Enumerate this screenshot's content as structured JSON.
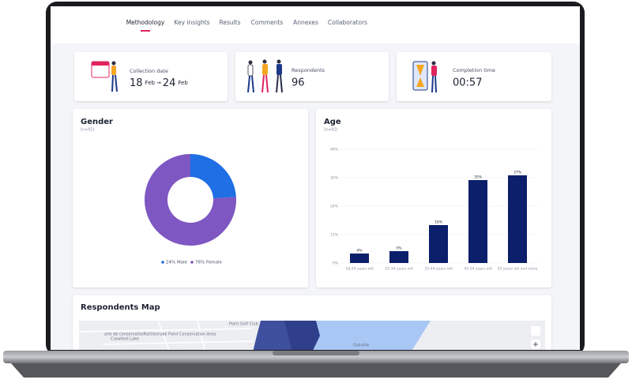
{
  "nav": {
    "items": [
      "Methodology",
      "Key insights",
      "Results",
      "Comments",
      "Annexes",
      "Collaborators"
    ],
    "active": 0
  },
  "cards": [
    {
      "label": "Collection date",
      "start_day": "18",
      "start_month": "Feb",
      "separator": "→",
      "end_day": "24",
      "end_month": "Feb"
    },
    {
      "label": "Respondents",
      "value": 96
    },
    {
      "label": "Completion time",
      "value": "00:57"
    }
  ],
  "gender": {
    "type": "pie",
    "title": "Gender",
    "subtitle": "(n=92)",
    "categories": [
      "Male",
      "Female"
    ],
    "values": [
      24,
      76
    ],
    "value_labels": [
      "24% Male",
      "76% Female"
    ],
    "colors": [
      "#1f6fe5",
      "#7e57c2"
    ]
  },
  "age": {
    "type": "bar",
    "title": "Age",
    "subtitle": "(n=92)",
    "categories": [
      "18-24 years old",
      "25-34 years old",
      "35-44 years old",
      "45-54 years old",
      "55 years old and more"
    ],
    "values": [
      4,
      5,
      16,
      35,
      37
    ],
    "value_labels": [
      "4%",
      "5%",
      "16%",
      "35%",
      "37%"
    ],
    "color": "#0b1f6b",
    "ylim": [
      0,
      48
    ],
    "yticks": [
      {
        "value": 0,
        "label": "0%"
      },
      {
        "value": 12,
        "label": "12%"
      },
      {
        "value": 24,
        "label": "24%"
      },
      {
        "value": 36,
        "label": "36%"
      },
      {
        "value": 48,
        "label": "48%"
      }
    ],
    "grid": true
  },
  "map": {
    "title": "Respondents Map",
    "labels": [
      "Point Golf Club",
      "aire de conservation",
      "Crawford Lake",
      "Rattlesnake Point Conservation Area",
      "Oakville"
    ]
  }
}
